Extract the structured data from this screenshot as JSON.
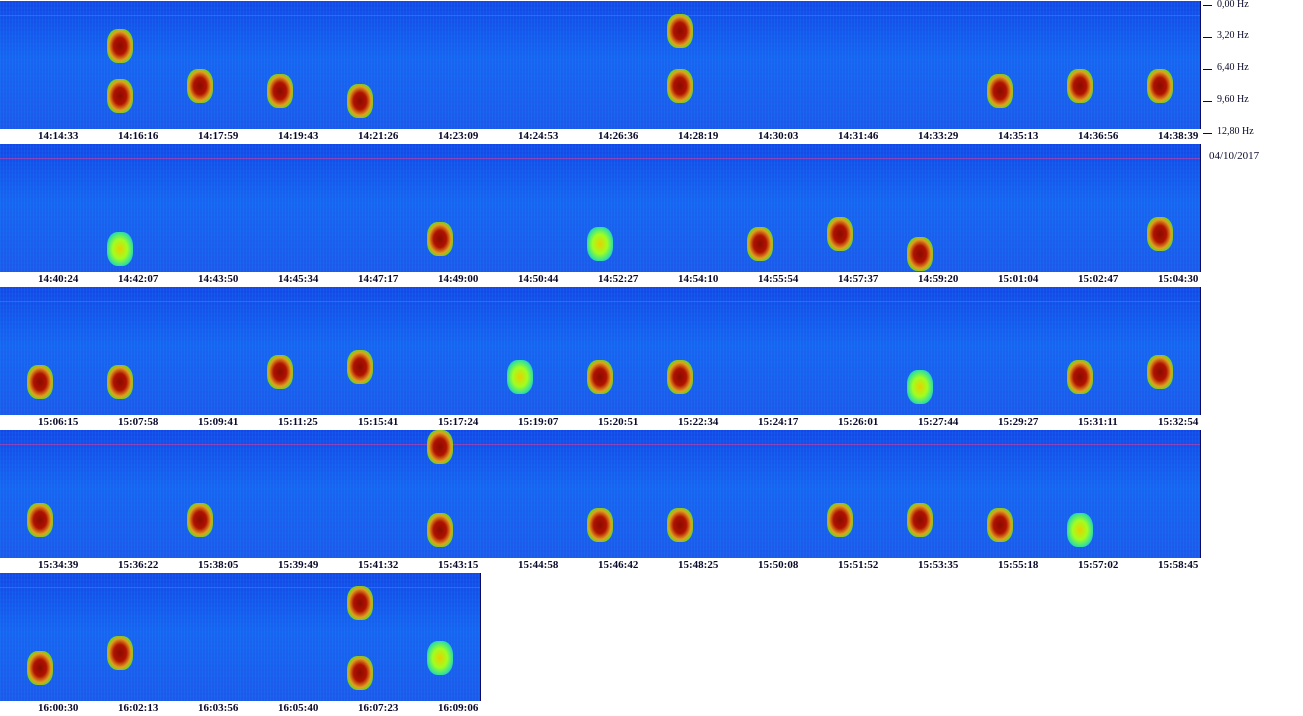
{
  "chart_data": {
    "type": "heatmap",
    "title": "",
    "date": "04/10/2017",
    "frequency_axis": {
      "unit": "Hz",
      "tick_labels": [
        "0,00 Hz",
        "3,20 Hz",
        "6,40 Hz",
        "9,60 Hz",
        "12,80 Hz"
      ],
      "range": [
        0,
        12.8
      ]
    },
    "colormap": [
      "#1646e6",
      "#20c0ff",
      "#40f080",
      "#f0e000",
      "#e02000",
      "#800000"
    ],
    "rows": [
      {
        "times": [
          "14:14:33",
          "14:16:16",
          "14:17:59",
          "14:19:43",
          "14:21:26",
          "14:23:09",
          "14:24:53",
          "14:26:36",
          "14:28:19",
          "14:30:03",
          "14:31:46",
          "14:33:29",
          "14:35:13",
          "14:36:56",
          "14:38:39"
        ],
        "activity": [
          {
            "panel": 1,
            "f": 9.5,
            "level": "hot"
          },
          {
            "panel": 1,
            "f": 4.5,
            "level": "hot"
          },
          {
            "panel": 2,
            "f": 8.5,
            "level": "hot"
          },
          {
            "panel": 3,
            "f": 9.0,
            "level": "hot"
          },
          {
            "panel": 4,
            "f": 10.0,
            "level": "hot"
          },
          {
            "panel": 8,
            "f": 8.5,
            "level": "hot"
          },
          {
            "panel": 8,
            "f": 3.0,
            "level": "hot"
          },
          {
            "panel": 12,
            "f": 9.0,
            "level": "hot"
          },
          {
            "panel": 13,
            "f": 8.5,
            "level": "hot"
          },
          {
            "panel": 14,
            "f": 8.5,
            "level": "hot"
          }
        ]
      },
      {
        "times": [
          "14:40:24",
          "14:42:07",
          "14:43:50",
          "14:45:34",
          "14:47:17",
          "14:49:00",
          "14:50:44",
          "14:52:27",
          "14:54:10",
          "14:55:54",
          "14:57:37",
          "14:59:20",
          "15:01:04",
          "15:02:47",
          "15:04:30"
        ],
        "activity": [
          {
            "panel": 1,
            "f": 10.5,
            "level": "warm"
          },
          {
            "panel": 5,
            "f": 9.5,
            "level": "hot"
          },
          {
            "panel": 7,
            "f": 10.0,
            "level": "warm"
          },
          {
            "panel": 9,
            "f": 10.0,
            "level": "hot"
          },
          {
            "panel": 10,
            "f": 9.0,
            "level": "hot"
          },
          {
            "panel": 11,
            "f": 11.0,
            "level": "hot"
          },
          {
            "panel": 14,
            "f": 9.0,
            "level": "hot"
          }
        ]
      },
      {
        "times": [
          "15:06:15",
          "15:07:58",
          "15:09:41",
          "15:11:25",
          "15:15:41",
          "15:17:24",
          "15:19:07",
          "15:20:51",
          "15:22:34",
          "15:24:17",
          "15:26:01",
          "15:27:44",
          "15:29:27",
          "15:31:11",
          "15:32:54"
        ],
        "activity": [
          {
            "panel": 0,
            "f": 9.5,
            "level": "hot"
          },
          {
            "panel": 1,
            "f": 9.5,
            "level": "hot"
          },
          {
            "panel": 3,
            "f": 8.5,
            "level": "hot"
          },
          {
            "panel": 4,
            "f": 8.0,
            "level": "hot"
          },
          {
            "panel": 6,
            "f": 9.0,
            "level": "warm"
          },
          {
            "panel": 7,
            "f": 9.0,
            "level": "hot"
          },
          {
            "panel": 8,
            "f": 9.0,
            "level": "hot"
          },
          {
            "panel": 11,
            "f": 10.0,
            "level": "warm"
          },
          {
            "panel": 13,
            "f": 9.0,
            "level": "hot"
          },
          {
            "panel": 14,
            "f": 8.5,
            "level": "hot"
          }
        ]
      },
      {
        "times": [
          "15:34:39",
          "15:36:22",
          "15:38:05",
          "15:39:49",
          "15:41:32",
          "15:43:15",
          "15:44:58",
          "15:46:42",
          "15:48:25",
          "15:50:08",
          "15:51:52",
          "15:53:35",
          "15:55:18",
          "15:57:02",
          "15:58:45"
        ],
        "activity": [
          {
            "panel": 0,
            "f": 9.0,
            "level": "hot"
          },
          {
            "panel": 2,
            "f": 9.0,
            "level": "hot"
          },
          {
            "panel": 5,
            "f": 10.0,
            "level": "hot"
          },
          {
            "panel": 5,
            "f": 1.5,
            "level": "hot"
          },
          {
            "panel": 7,
            "f": 9.5,
            "level": "hot"
          },
          {
            "panel": 8,
            "f": 9.5,
            "level": "hot"
          },
          {
            "panel": 10,
            "f": 9.0,
            "level": "hot"
          },
          {
            "panel": 11,
            "f": 9.0,
            "level": "hot"
          },
          {
            "panel": 12,
            "f": 9.5,
            "level": "hot"
          },
          {
            "panel": 13,
            "f": 10.0,
            "level": "warm"
          }
        ]
      },
      {
        "times": [
          "16:00:30",
          "16:02:13",
          "16:03:56",
          "16:05:40",
          "16:07:23",
          "16:09:06"
        ],
        "activity": [
          {
            "panel": 0,
            "f": 9.5,
            "level": "hot"
          },
          {
            "panel": 1,
            "f": 8.0,
            "level": "hot"
          },
          {
            "panel": 4,
            "f": 3.0,
            "level": "hot"
          },
          {
            "panel": 4,
            "f": 10.0,
            "level": "hot"
          },
          {
            "panel": 5,
            "f": 8.5,
            "level": "warm"
          }
        ]
      }
    ]
  }
}
